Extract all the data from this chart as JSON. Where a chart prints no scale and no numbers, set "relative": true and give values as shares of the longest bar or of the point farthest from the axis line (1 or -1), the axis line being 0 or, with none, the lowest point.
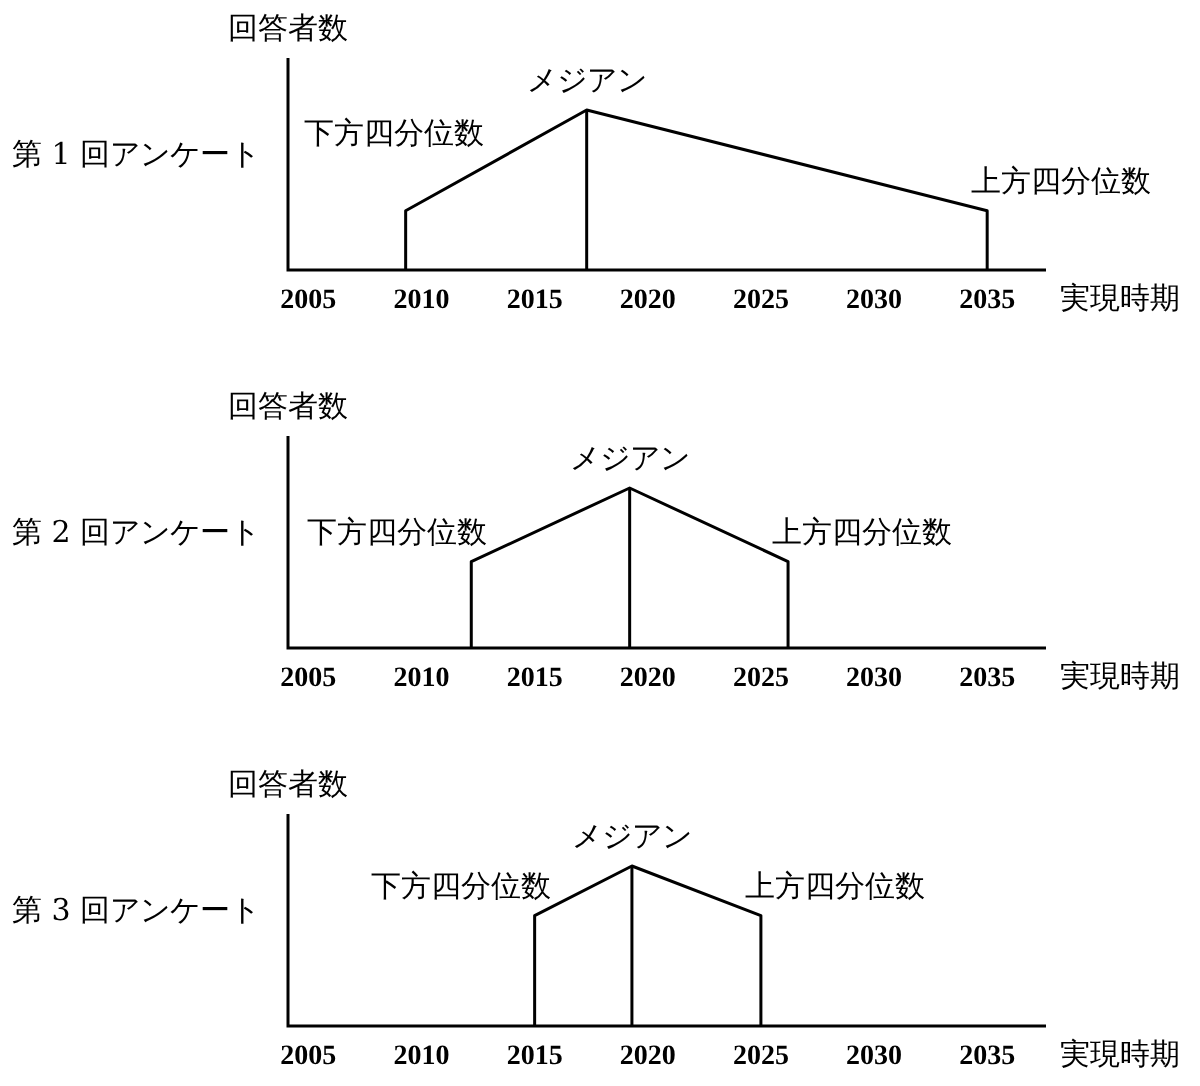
{
  "chart_data": [
    {
      "type": "line",
      "title": "第 1 回アンケート",
      "ylabel": "回答者数",
      "xlabel": "実現時期",
      "relative": true,
      "tick_labels": "x",
      "xlim": [
        2004.1,
        2037.6
      ],
      "xticks": [
        2005,
        2010,
        2015,
        2020,
        2025,
        2030,
        2035
      ],
      "series": [
        {
          "color": "#000000",
          "x": [
            2009.3,
            2009.3,
            2017.3,
            2035,
            2035
          ],
          "values": [
            0,
            0.37,
            1,
            0.37,
            0
          ]
        },
        {
          "color": "#000000",
          "x": [
            2017.3,
            2017.3
          ],
          "values": [
            0,
            1
          ]
        }
      ],
      "annotations": [
        {
          "text": "下方四分位数",
          "x": 2009.3,
          "y": 0.37
        },
        {
          "text": "メジアン",
          "x": 2017.3,
          "y": 1
        },
        {
          "text": "上方四分位数",
          "x": 2035,
          "y": 0.37
        }
      ]
    },
    {
      "type": "line",
      "title": "第 2 回アンケート",
      "ylabel": "回答者数",
      "xlabel": "実現時期",
      "relative": true,
      "tick_labels": "x",
      "xlim": [
        2004.1,
        2037.6
      ],
      "xticks": [
        2005,
        2010,
        2015,
        2020,
        2025,
        2030,
        2035
      ],
      "series": [
        {
          "color": "#000000",
          "x": [
            2012.2,
            2012.2,
            2019.2,
            2026.2,
            2026.2
          ],
          "values": [
            0,
            0.54,
            1,
            0.54,
            0
          ]
        },
        {
          "color": "#000000",
          "x": [
            2019.2,
            2019.2
          ],
          "values": [
            0,
            1
          ]
        }
      ],
      "annotations": [
        {
          "text": "下方四分位数",
          "x": 2012.2,
          "y": 0.54
        },
        {
          "text": "メジアン",
          "x": 2019.2,
          "y": 1
        },
        {
          "text": "上方四分位数",
          "x": 2026.2,
          "y": 0.54
        }
      ]
    },
    {
      "type": "line",
      "title": "第 3 回アンケート",
      "ylabel": "回答者数",
      "xlabel": "実現時期",
      "relative": true,
      "tick_labels": "x",
      "xlim": [
        2004.1,
        2037.6
      ],
      "xticks": [
        2005,
        2010,
        2015,
        2020,
        2025,
        2030,
        2035
      ],
      "series": [
        {
          "color": "#000000",
          "x": [
            2015,
            2015,
            2019.3,
            2025,
            2025
          ],
          "values": [
            0,
            0.69,
            1,
            0.69,
            0
          ]
        },
        {
          "color": "#000000",
          "x": [
            2019.3,
            2019.3
          ],
          "values": [
            0,
            1
          ]
        }
      ],
      "annotations": [
        {
          "text": "下方四分位数",
          "x": 2015,
          "y": 0.69
        },
        {
          "text": "メジアン",
          "x": 2019.3,
          "y": 1
        },
        {
          "text": "上方四分位数",
          "x": 2025,
          "y": 0.69
        }
      ]
    }
  ]
}
